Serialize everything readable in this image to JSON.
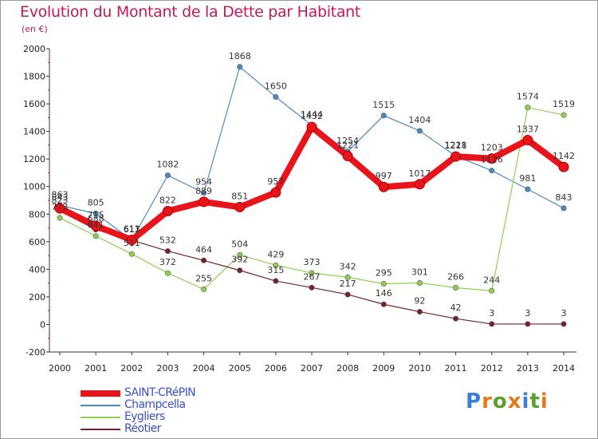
{
  "header": {
    "title": "Evolution du Montant de la Dette par Habitant",
    "subtitle": "(en €)"
  },
  "logo": {
    "text": "Proxiti",
    "letter_colors": [
      "#3b7dd8",
      "#e8791b",
      "#5aa02c",
      "#e8791b",
      "#3b7dd8",
      "#5aa02c",
      "#e8791b"
    ]
  },
  "chart_data": {
    "type": "line",
    "title": "Evolution du Montant de la Dette par Habitant",
    "subtitle": "(en €)",
    "x": [
      "2000",
      "2001",
      "2002",
      "2003",
      "2004",
      "2005",
      "2006",
      "2007",
      "2008",
      "2009",
      "2010",
      "2011",
      "2012",
      "2013",
      "2014"
    ],
    "ylim": [
      -200,
      2000
    ],
    "yticks": [
      "-200",
      "0",
      "200",
      "400",
      "600",
      "800",
      "1000",
      "1200",
      "1400",
      "1600",
      "1800",
      "2000"
    ],
    "grid": false,
    "legend_position": "bottom-left",
    "series": [
      {
        "name": "SAINT-CRéPIN",
        "color": "#e8141b",
        "emphasis": true,
        "values": [
          843,
          715,
          613,
          822,
          889,
          851,
          957,
          1432,
          1221,
          997,
          1017,
          1218,
          1203,
          1337,
          1142
        ],
        "labels": [
          "843",
          "715",
          "613",
          "822",
          "889",
          "851",
          "957",
          "1432",
          "1221",
          "997",
          "1017",
          "1218",
          "1203",
          "1337",
          "1142"
        ]
      },
      {
        "name": "Champcella",
        "color": "#4a8ac4",
        "values": [
          863,
          805,
          611,
          1082,
          954,
          1868,
          1650,
          1444,
          1254,
          1515,
          1404,
          1221,
          1116,
          981,
          843
        ],
        "labels": [
          "863",
          "805",
          "611",
          "1082",
          "954",
          "1868",
          "1650",
          "1444",
          "1254",
          "1515",
          "1404",
          "1221",
          "1116",
          "981",
          "843"
        ]
      },
      {
        "name": "Eygliers",
        "color": "#8fd14f",
        "values": [
          773,
          641,
          511,
          372,
          255,
          504,
          429,
          373,
          342,
          295,
          301,
          266,
          244,
          1574,
          1519
        ],
        "labels": [
          "773",
          "641",
          "511",
          "372",
          "255",
          "504",
          "429",
          "373",
          "342",
          "295",
          "301",
          "266",
          "244",
          "1574",
          "1519"
        ]
      },
      {
        "name": "Réotier",
        "color": "#7a1f2b",
        "values": [
          823,
          688,
          611,
          532,
          464,
          392,
          315,
          267,
          217,
          146,
          92,
          42,
          3,
          3,
          3
        ],
        "labels": [
          "823",
          "688",
          "611",
          "532",
          "464",
          "392",
          "315",
          "267",
          "217",
          "146",
          "92",
          "42",
          "3",
          "3",
          "3"
        ]
      }
    ]
  }
}
